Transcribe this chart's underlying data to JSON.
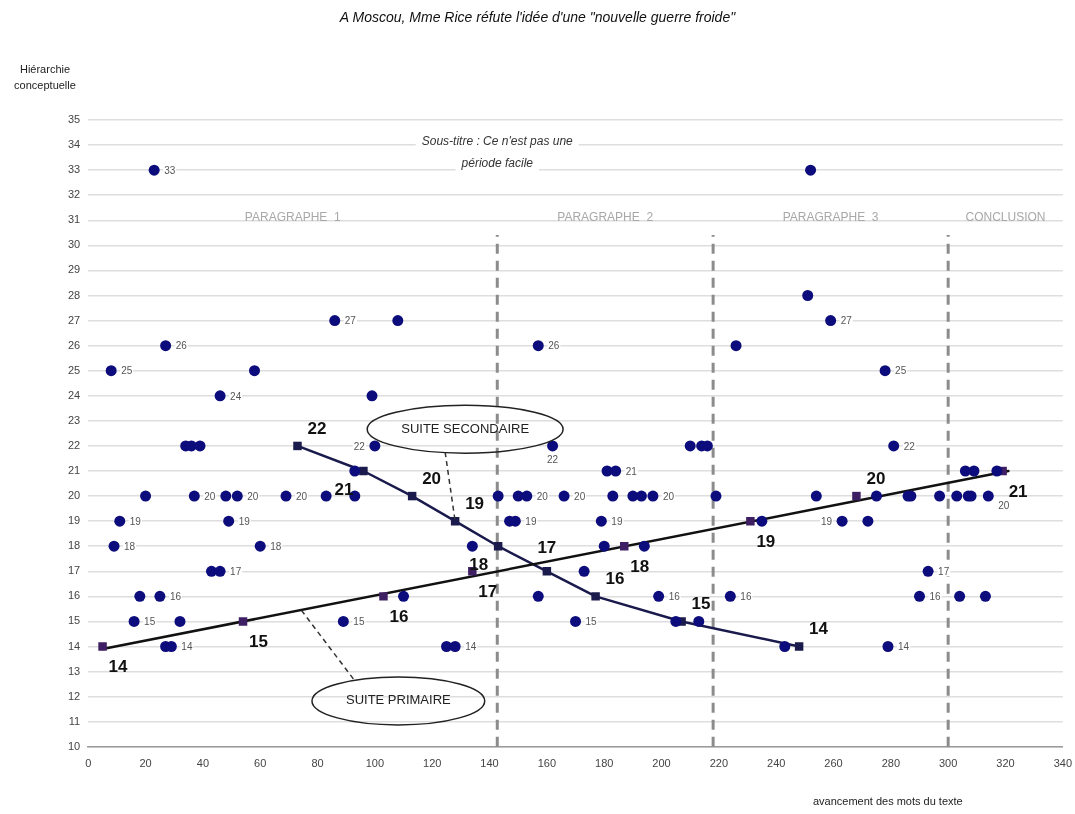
{
  "chart_data": {
    "type": "scatter",
    "title": "A Moscou, Mme Rice réfute l'idée d'une \"nouvelle guerre froide\"",
    "subtitle": "Sous-titre : Ce n'est pas une période facile",
    "xlabel": "avancement des mots du texte",
    "ylabel": "Hiérarchie conceptuelle",
    "xlim": [
      0,
      340
    ],
    "xticks": [
      0,
      20,
      40,
      60,
      80,
      100,
      120,
      140,
      160,
      180,
      200,
      220,
      240,
      260,
      280,
      300,
      320,
      340
    ],
    "ylim": [
      10,
      35
    ],
    "yticks": [
      10,
      11,
      12,
      13,
      14,
      15,
      16,
      17,
      18,
      19,
      20,
      21,
      22,
      23,
      24,
      25,
      26,
      27,
      28,
      29,
      30,
      31,
      32,
      33,
      34,
      35
    ],
    "grid": "y",
    "legend": false,
    "ref_lines": [
      {
        "axis": "x",
        "value": 142.7,
        "color": "#8c8c8c",
        "line_style": "dashed"
      },
      {
        "axis": "x",
        "value": 218,
        "color": "#8c8c8c",
        "line_style": "dashed"
      },
      {
        "axis": "x",
        "value": 300,
        "color": "#8c8c8c",
        "line_style": "dashed"
      }
    ],
    "annotations": [
      "PARAGRAPHE  1",
      "PARAGRAPHE  2",
      "PARAGRAPHE  3",
      "CONCLUSION",
      {
        "text": "SUITE SECONDAIRE",
        "x": 128,
        "y": 19
      },
      {
        "text": "SUITE PRIMAIRE",
        "x": 74,
        "y": 15.5
      }
    ],
    "series": [
      {
        "type": "scatter",
        "color": "#0c0c7c",
        "marker": "circle",
        "x": [
          23,
          252,
          251,
          86,
          108,
          259,
          27,
          157,
          226,
          8,
          58,
          278,
          46,
          99,
          34,
          36,
          39,
          100,
          162,
          210,
          214,
          216,
          281,
          93,
          181,
          184,
          306,
          309,
          317,
          20,
          37,
          48,
          52,
          69,
          83,
          93,
          143,
          150,
          153,
          166,
          183,
          190,
          193,
          197,
          219,
          254,
          275,
          286,
          287,
          297,
          303,
          307,
          308,
          314,
          11,
          49,
          147,
          149,
          179,
          235,
          263,
          272,
          9,
          60,
          134,
          180,
          194,
          43,
          46,
          173,
          293,
          18,
          25,
          110,
          157,
          199,
          224,
          290,
          304,
          313,
          16,
          32,
          89,
          170,
          205,
          213,
          27,
          29,
          125,
          128,
          243,
          279
        ],
        "values": [
          33,
          33,
          28,
          27,
          27,
          27,
          26,
          26,
          26,
          25,
          25,
          25,
          24,
          24,
          22,
          22,
          22,
          22,
          22,
          22,
          22,
          22,
          22,
          21,
          21,
          21,
          21,
          21,
          21,
          20,
          20,
          20,
          20,
          20,
          20,
          20,
          20,
          20,
          20,
          20,
          20,
          20,
          20,
          20,
          20,
          20,
          20,
          20,
          20,
          20,
          20,
          20,
          20,
          20,
          19,
          19,
          19,
          19,
          19,
          19,
          19,
          19,
          18,
          18,
          18,
          18,
          18,
          17,
          17,
          17,
          17,
          16,
          16,
          16,
          16,
          16,
          16,
          16,
          16,
          16,
          15,
          15,
          15,
          15,
          15,
          15,
          14,
          14,
          14,
          14,
          14,
          14
        ],
        "value_labels": [
          "33",
          null,
          null,
          "27",
          null,
          "27",
          "26",
          "26",
          null,
          "25",
          null,
          "25",
          "24",
          null,
          null,
          null,
          null,
          "22",
          "22",
          null,
          null,
          null,
          "22",
          null,
          null,
          "21",
          null,
          null,
          null,
          null,
          "20",
          null,
          "20",
          "20",
          null,
          null,
          null,
          null,
          "20",
          "20",
          null,
          null,
          null,
          "20",
          null,
          null,
          null,
          null,
          null,
          null,
          null,
          null,
          null,
          "20",
          "19",
          "19",
          null,
          "19",
          "19",
          null,
          "19",
          null,
          "18",
          "18",
          null,
          null,
          null,
          null,
          "17",
          null,
          "17",
          null,
          "16",
          null,
          null,
          "16",
          "16",
          "16",
          null,
          null,
          "15",
          null,
          "15",
          "15",
          null,
          null,
          null,
          "14",
          null,
          "14",
          null,
          "14"
        ]
      },
      {
        "type": "scatter",
        "color": "#3e1f63",
        "marker": "square",
        "x": [
          5,
          54,
          103,
          134,
          187,
          231,
          268,
          319
        ],
        "values": [
          14,
          15,
          16,
          17,
          18,
          19,
          20,
          21
        ],
        "value_labels": [
          "14",
          "15",
          "16",
          "17",
          "18",
          "19",
          "20",
          "21"
        ]
      },
      {
        "type": "line",
        "color": "#111111",
        "marker": "none",
        "x": [
          5,
          321
        ],
        "values": [
          13.9,
          21.0
        ]
      },
      {
        "type": "line",
        "color": "#1a1a4d",
        "marker": "square",
        "x": [
          73,
          96,
          113,
          128,
          143,
          160,
          177,
          207,
          248
        ],
        "values": [
          22,
          21,
          20,
          19,
          18,
          17,
          16,
          15,
          14
        ],
        "value_labels": [
          "22",
          "21",
          "20",
          "19",
          "18",
          "17",
          "16",
          "15",
          "14"
        ]
      }
    ]
  }
}
